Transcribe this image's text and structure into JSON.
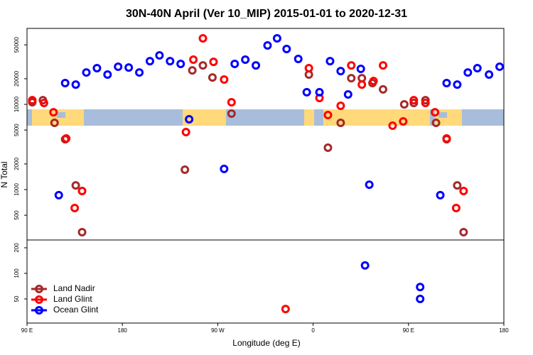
{
  "chart_data": [
    {
      "type": "scatter",
      "title": "30N-40N April (Ver 10_MIP)   2015-01-01 to 2020-12-31",
      "y_label": "N Total",
      "log_scale": true,
      "xlim": [
        90,
        540
      ],
      "ylim": [
        256,
        78000
      ],
      "yticks": [
        500,
        1000,
        2000,
        5000,
        10000,
        20000,
        50000
      ],
      "series": [
        {
          "color": "#a52a2a",
          "x": [
            95,
            105,
            116,
            126,
            136,
            142,
            239,
            246,
            256,
            265,
            283,
            356,
            374,
            386,
            396,
            406,
            416,
            426,
            446,
            455,
            466,
            476,
            486,
            496,
            502
          ],
          "values": [
            10600,
            11200,
            6070,
            3900,
            1120,
            316,
            1710,
            25100,
            28700,
            20700,
            7790,
            22400,
            3100,
            6070,
            20300,
            20300,
            17800,
            15000,
            10000,
            10400,
            11200,
            6070,
            3900,
            1120,
            316
          ]
        },
        {
          "color": "#ff0000",
          "x": [
            95,
            106,
            115,
            127,
            135,
            142,
            240,
            247,
            256,
            266,
            276,
            283,
            356,
            366,
            374,
            386,
            396,
            406,
            417,
            426,
            435,
            445,
            455,
            466,
            475,
            486,
            495,
            502
          ],
          "values": [
            11200,
            10400,
            8090,
            3980,
            607,
            962,
            4730,
            33500,
            59600,
            31600,
            19600,
            10600,
            26600,
            11900,
            7500,
            9620,
            28700,
            17100,
            18800,
            28700,
            5620,
            6310,
            11200,
            10400,
            8090,
            3980,
            607,
            962
          ]
        },
        {
          "color": "#0000ff",
          "x": [
            120,
            126,
            136,
            146,
            156,
            166,
            176,
            186,
            196,
            206,
            215,
            225,
            235,
            243,
            276,
            286,
            296,
            306,
            317,
            326,
            335,
            346,
            354,
            366,
            376,
            386,
            393,
            405,
            413,
            480,
            486,
            496,
            506,
            515,
            526,
            536
          ],
          "values": [
            860,
            17800,
            17100,
            23700,
            26600,
            22400,
            27700,
            27100,
            23700,
            32200,
            37600,
            32200,
            29900,
            6680,
            1750,
            29900,
            33500,
            28700,
            49200,
            59600,
            44700,
            34200,
            13900,
            13900,
            32200,
            24600,
            13100,
            26100,
            1140,
            860,
            17800,
            17100,
            23700,
            26600,
            22400,
            27700
          ]
        }
      ]
    },
    {
      "type": "scatter",
      "x_label": "Longitude (deg E)",
      "log_scale": true,
      "legend": "lower left",
      "xlim": [
        90,
        540
      ],
      "ylim": [
        26,
        247
      ],
      "xticks": [
        {
          "value": 90,
          "label": "90 E"
        },
        180,
        {
          "value": 270,
          "label": "90 W"
        },
        {
          "value": 360,
          "label": "0"
        },
        {
          "value": 450,
          "label": "90 E"
        },
        {
          "value": 540,
          "label": "180"
        }
      ],
      "yticks": [
        50,
        100,
        200
      ],
      "series": [
        {
          "name": "Land Nadir",
          "color": "#a52a2a",
          "x": [],
          "values": []
        },
        {
          "name": "Land Glint",
          "color": "#ff0000",
          "x": [
            334
          ],
          "values": [
            38
          ]
        },
        {
          "name": "Ocean Glint",
          "color": "#0000ff",
          "x": [
            409,
            461,
            461
          ],
          "values": [
            124,
            69,
            50
          ]
        }
      ]
    }
  ]
}
